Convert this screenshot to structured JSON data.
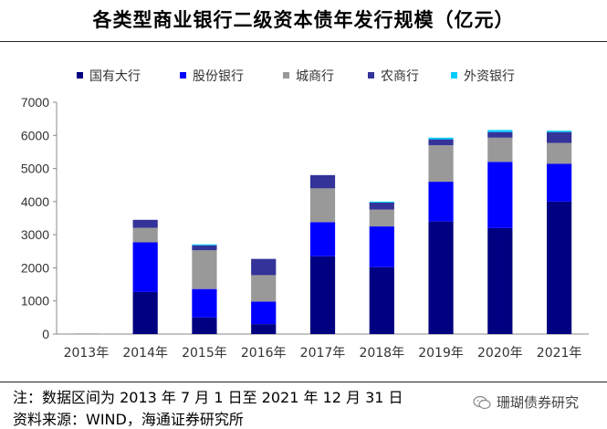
{
  "header": {
    "title": "各类型商业银行二级资本债年发行规模（亿元）"
  },
  "footer": {
    "note": "注：数据区间为 2013 年 7 月 1 日至 2021 年 12 月 31 日",
    "source": "资料来源：WIND，海通证券研究所",
    "watermark": "珊瑚债券研究"
  },
  "icons": {
    "watermark_icon": "wechat-icon"
  },
  "colors": {
    "国有大行": "#000080",
    "股份银行": "#0000ff",
    "城商行": "#999999",
    "农商行": "#333399",
    "外资银行": "#00ccff"
  },
  "chart_data": {
    "type": "bar",
    "stacked": true,
    "categories": [
      "2013年",
      "2014年",
      "2015年",
      "2016年",
      "2017年",
      "2018年",
      "2019年",
      "2020年",
      "2021年"
    ],
    "series": [
      {
        "name": "国有大行",
        "values": [
          0,
          1270,
          500,
          300,
          2350,
          2020,
          3400,
          3200,
          4000
        ]
      },
      {
        "name": "股份银行",
        "values": [
          0,
          1500,
          860,
          680,
          1030,
          1230,
          1200,
          2000,
          1140
        ]
      },
      {
        "name": "城商行",
        "values": [
          20,
          440,
          1170,
          800,
          1020,
          510,
          1100,
          730,
          630
        ]
      },
      {
        "name": "农商行",
        "values": [
          0,
          240,
          150,
          490,
          400,
          210,
          180,
          170,
          330
        ]
      },
      {
        "name": "外资银行",
        "values": [
          0,
          0,
          30,
          0,
          0,
          30,
          50,
          60,
          40
        ]
      }
    ],
    "ylim": [
      0,
      7000
    ],
    "yticks": [
      0,
      1000,
      2000,
      3000,
      4000,
      5000,
      6000,
      7000
    ],
    "grid": false,
    "legend": "top"
  }
}
